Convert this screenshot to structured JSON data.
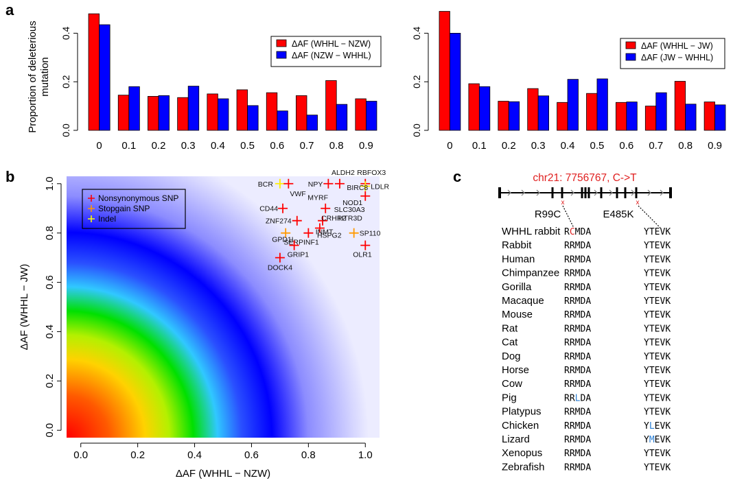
{
  "panel_labels": [
    "a",
    "b",
    "c"
  ],
  "chart_data": [
    {
      "type": "bar",
      "categories": [
        "0",
        "0.1",
        "0.2",
        "0.3",
        "0.4",
        "0.5",
        "0.6",
        "0.7",
        "0.8",
        "0.9"
      ],
      "series": [
        {
          "name": "ΔAF (WHHL − NZW)",
          "color": "#ff0000",
          "values": [
            0.48,
            0.145,
            0.14,
            0.135,
            0.15,
            0.167,
            0.155,
            0.143,
            0.205,
            0.13
          ]
        },
        {
          "name": "ΔAF (NZW − WHHL)",
          "color": "#0000ff",
          "values": [
            0.435,
            0.18,
            0.143,
            0.182,
            0.13,
            0.102,
            0.08,
            0.063,
            0.107,
            0.12
          ]
        }
      ],
      "ylabel": "Proportion of deleterious mutation",
      "ylim": [
        0,
        0.5
      ],
      "yticks": [
        "0.0",
        "0.2",
        "0.4"
      ],
      "legend": "top-right"
    },
    {
      "type": "bar",
      "categories": [
        "0",
        "0.1",
        "0.2",
        "0.3",
        "0.4",
        "0.5",
        "0.6",
        "0.7",
        "0.8",
        "0.9"
      ],
      "series": [
        {
          "name": "ΔAF (WHHL − JW)",
          "color": "#ff0000",
          "values": [
            0.49,
            0.192,
            0.12,
            0.172,
            0.115,
            0.152,
            0.115,
            0.1,
            0.202,
            0.117
          ]
        },
        {
          "name": "ΔAF (JW − WHHL)",
          "color": "#0000ff",
          "values": [
            0.4,
            0.18,
            0.118,
            0.142,
            0.21,
            0.212,
            0.117,
            0.155,
            0.108,
            0.105
          ]
        }
      ],
      "ylim": [
        0,
        0.5
      ],
      "yticks": [
        "0.0",
        "0.2",
        "0.4"
      ],
      "legend": "top-right"
    },
    {
      "type": "scatter",
      "xlabel": "ΔAF (WHHL − NZW)",
      "ylabel": "ΔAF (WHHL − JW)",
      "xlim": [
        -0.05,
        1.05
      ],
      "ylim": [
        -0.03,
        1.03
      ],
      "xticks": [
        "0.0",
        "0.2",
        "0.4",
        "0.6",
        "0.8",
        "1.0"
      ],
      "yticks": [
        "0.0",
        "0.2",
        "0.4",
        "0.6",
        "0.8",
        "1.0"
      ],
      "background": "radial heatmap from origin: red → yellow → green → blue → white",
      "legend": "top-left",
      "legend_items": [
        {
          "label": "Nonsynonymous SNP",
          "color": "#ff0000"
        },
        {
          "label": "Stopgain SNP",
          "color": "#ff9900"
        },
        {
          "label": "Indel",
          "color": "#ffff00"
        }
      ],
      "points": [
        {
          "x": 0.7,
          "y": 1.0,
          "label": "BCR",
          "kind": "indel"
        },
        {
          "x": 0.73,
          "y": 1.0,
          "label": "VWF",
          "kind": "nonsyn"
        },
        {
          "x": 0.87,
          "y": 1.0,
          "label": "NPY",
          "kind": "nonsyn"
        },
        {
          "x": 0.91,
          "y": 1.0,
          "label": "ALDH2",
          "kind": "nonsyn"
        },
        {
          "x": 1.0,
          "y": 1.0,
          "label": "RBFOX3",
          "kind": "nonsyn"
        },
        {
          "x": 1.0,
          "y": 0.99,
          "label": "LDLR",
          "kind": "indel"
        },
        {
          "x": 1.0,
          "y": 0.95,
          "label": "NOD1",
          "kind": "nonsyn"
        },
        {
          "x": 0.71,
          "y": 0.9,
          "label": "CD44",
          "kind": "nonsyn"
        },
        {
          "x": 0.86,
          "y": 0.9,
          "label": "MYRF",
          "kind": "nonsyn"
        },
        {
          "x": 0.76,
          "y": 0.85,
          "label": "ZNF274",
          "kind": "nonsyn"
        },
        {
          "x": 0.85,
          "y": 0.85,
          "label": "CRHR2",
          "kind": "nonsyn"
        },
        {
          "x": 0.72,
          "y": 0.8,
          "label": "GPD1L",
          "kind": "stopgain"
        },
        {
          "x": 0.8,
          "y": 0.8,
          "label": "SERPINF1",
          "kind": "nonsyn"
        },
        {
          "x": 0.84,
          "y": 0.82,
          "label": "HSPG2",
          "kind": "nonsyn"
        },
        {
          "x": 0.96,
          "y": 0.8,
          "label": "SP110",
          "kind": "stopgain"
        },
        {
          "x": 0.75,
          "y": 0.75,
          "label": "GRIP1",
          "kind": "nonsyn"
        },
        {
          "x": 1.0,
          "y": 0.75,
          "label": "OLR1",
          "kind": "nonsyn"
        },
        {
          "x": 0.7,
          "y": 0.7,
          "label": "DOCK4",
          "kind": "nonsyn"
        }
      ],
      "extra_labels": [
        "BIRC8",
        "SLC30A3",
        "HTR3D",
        "INMT"
      ]
    }
  ],
  "panel_c": {
    "title": "chr21: 7756767, C->T",
    "mutations": [
      "R99C",
      "E485K"
    ],
    "species": [
      "WHHL rabbit",
      "Rabbit",
      "Human",
      "Chimpanzee",
      "Gorilla",
      "Macaque",
      "Mouse",
      "Rat",
      "Cat",
      "Dog",
      "Horse",
      "Cow",
      "Pig",
      "Platypus",
      "Chicken",
      "Lizard",
      "Xenopus",
      "Zebrafish"
    ],
    "seq1": [
      "RCMDA",
      "RRMDA",
      "RRMDA",
      "RRMDA",
      "RRMDA",
      "RRMDA",
      "RRMDA",
      "RRMDA",
      "RRMDA",
      "RRMDA",
      "RRMDA",
      "RRMDA",
      "RRLDA",
      "RRMDA",
      "RRMDA",
      "RRMDA",
      "RRMDA",
      "RRMDA"
    ],
    "seq2": [
      "YTEVK",
      "YTEVK",
      "YTEVK",
      "YTEVK",
      "YTEVK",
      "YTEVK",
      "YTEVK",
      "YTEVK",
      "YTEVK",
      "YTEVK",
      "YTEVK",
      "YTEVK",
      "YTEVK",
      "YTEVK",
      "YLEVK",
      "YMEVK",
      "YTEVK",
      "YTEVK"
    ],
    "highlight_seq1": [
      {
        "row": 0,
        "pos": 1,
        "color": "#e02020"
      },
      {
        "row": 12,
        "pos": 2,
        "color": "#2a7fd4"
      }
    ],
    "highlight_seq2": [
      {
        "row": 14,
        "pos": 1,
        "color": "#2a7fd4"
      },
      {
        "row": 15,
        "pos": 1,
        "color": "#2a7fd4"
      }
    ]
  }
}
